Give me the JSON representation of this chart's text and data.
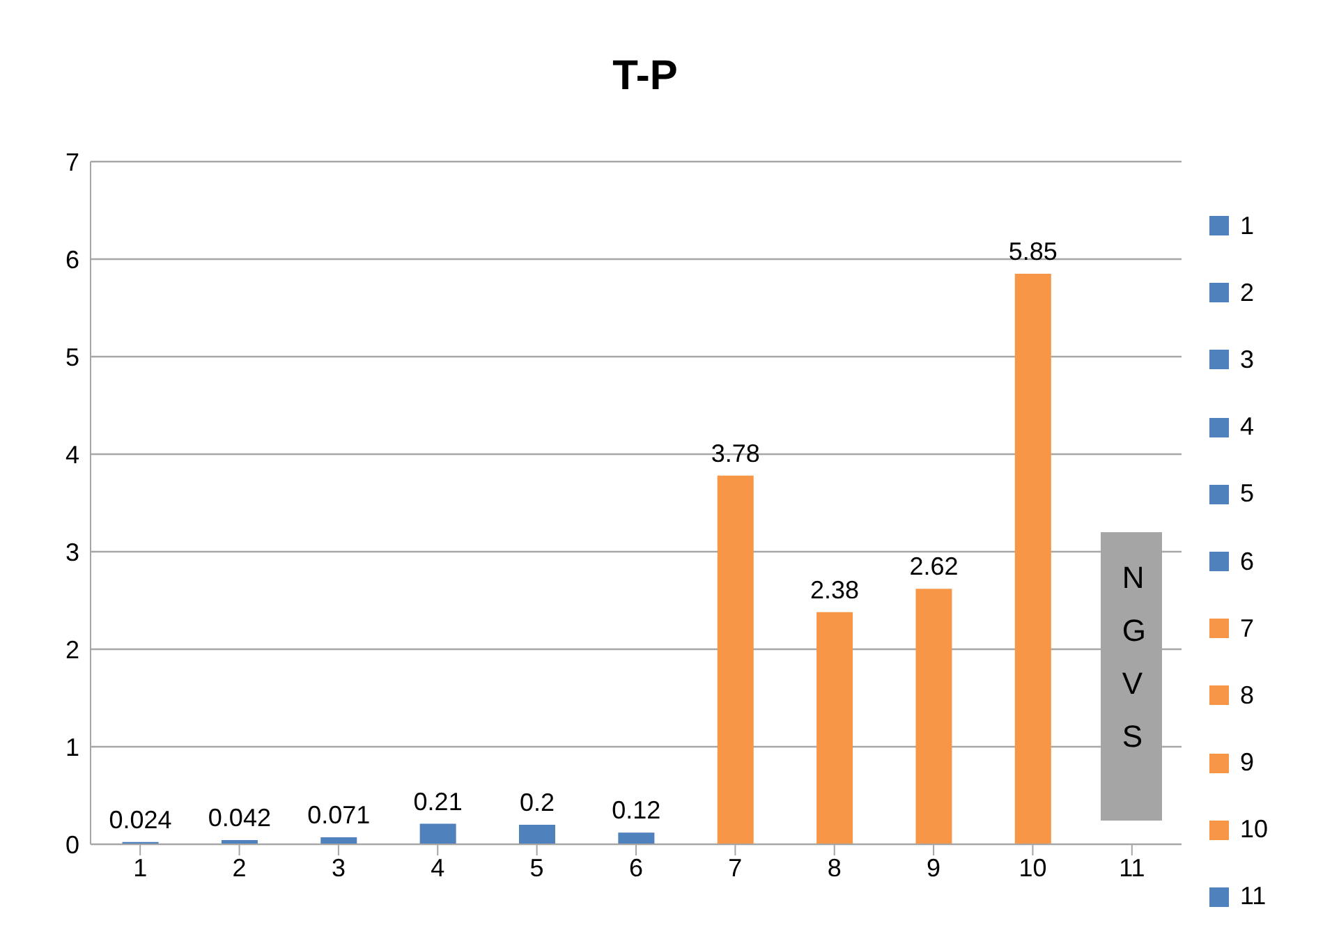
{
  "chart_data": {
    "type": "bar",
    "title": "T-P",
    "categories": [
      "1",
      "2",
      "3",
      "4",
      "5",
      "6",
      "7",
      "8",
      "9",
      "10",
      "11"
    ],
    "stacked": true,
    "series": [
      {
        "name": "1",
        "color": "#4f81bd",
        "values": [
          0.024,
          null,
          null,
          null,
          null,
          null,
          null,
          null,
          null,
          null,
          null
        ]
      },
      {
        "name": "2",
        "color": "#4f81bd",
        "values": [
          null,
          0.042,
          null,
          null,
          null,
          null,
          null,
          null,
          null,
          null,
          null
        ]
      },
      {
        "name": "3",
        "color": "#4f81bd",
        "values": [
          null,
          null,
          0.071,
          null,
          null,
          null,
          null,
          null,
          null,
          null,
          null
        ]
      },
      {
        "name": "4",
        "color": "#4f81bd",
        "values": [
          null,
          null,
          null,
          0.21,
          null,
          null,
          null,
          null,
          null,
          null,
          null
        ]
      },
      {
        "name": "5",
        "color": "#4f81bd",
        "values": [
          null,
          null,
          null,
          null,
          0.2,
          null,
          null,
          null,
          null,
          null,
          null
        ]
      },
      {
        "name": "6",
        "color": "#4f81bd",
        "values": [
          null,
          null,
          null,
          null,
          null,
          0.12,
          null,
          null,
          null,
          null,
          null
        ]
      },
      {
        "name": "7",
        "color": "#f79646",
        "values": [
          null,
          null,
          null,
          null,
          null,
          null,
          3.78,
          null,
          null,
          null,
          null
        ]
      },
      {
        "name": "8",
        "color": "#f79646",
        "values": [
          null,
          null,
          null,
          null,
          null,
          null,
          null,
          2.38,
          null,
          null,
          null
        ]
      },
      {
        "name": "9",
        "color": "#f79646",
        "values": [
          null,
          null,
          null,
          null,
          null,
          null,
          null,
          null,
          2.62,
          null,
          null
        ]
      },
      {
        "name": "10",
        "color": "#f79646",
        "values": [
          null,
          null,
          null,
          null,
          null,
          null,
          null,
          null,
          null,
          5.85,
          null
        ]
      },
      {
        "name": "11",
        "color": "#4f81bd",
        "values": [
          null,
          null,
          null,
          null,
          null,
          null,
          null,
          null,
          null,
          null,
          null
        ]
      }
    ],
    "ylim": [
      0,
      7
    ],
    "yticks": [
      0,
      1,
      2,
      3,
      4,
      5,
      6,
      7
    ],
    "grid": "y",
    "legend": "right",
    "data_labels": true,
    "annotations": [
      "NGVS"
    ]
  }
}
